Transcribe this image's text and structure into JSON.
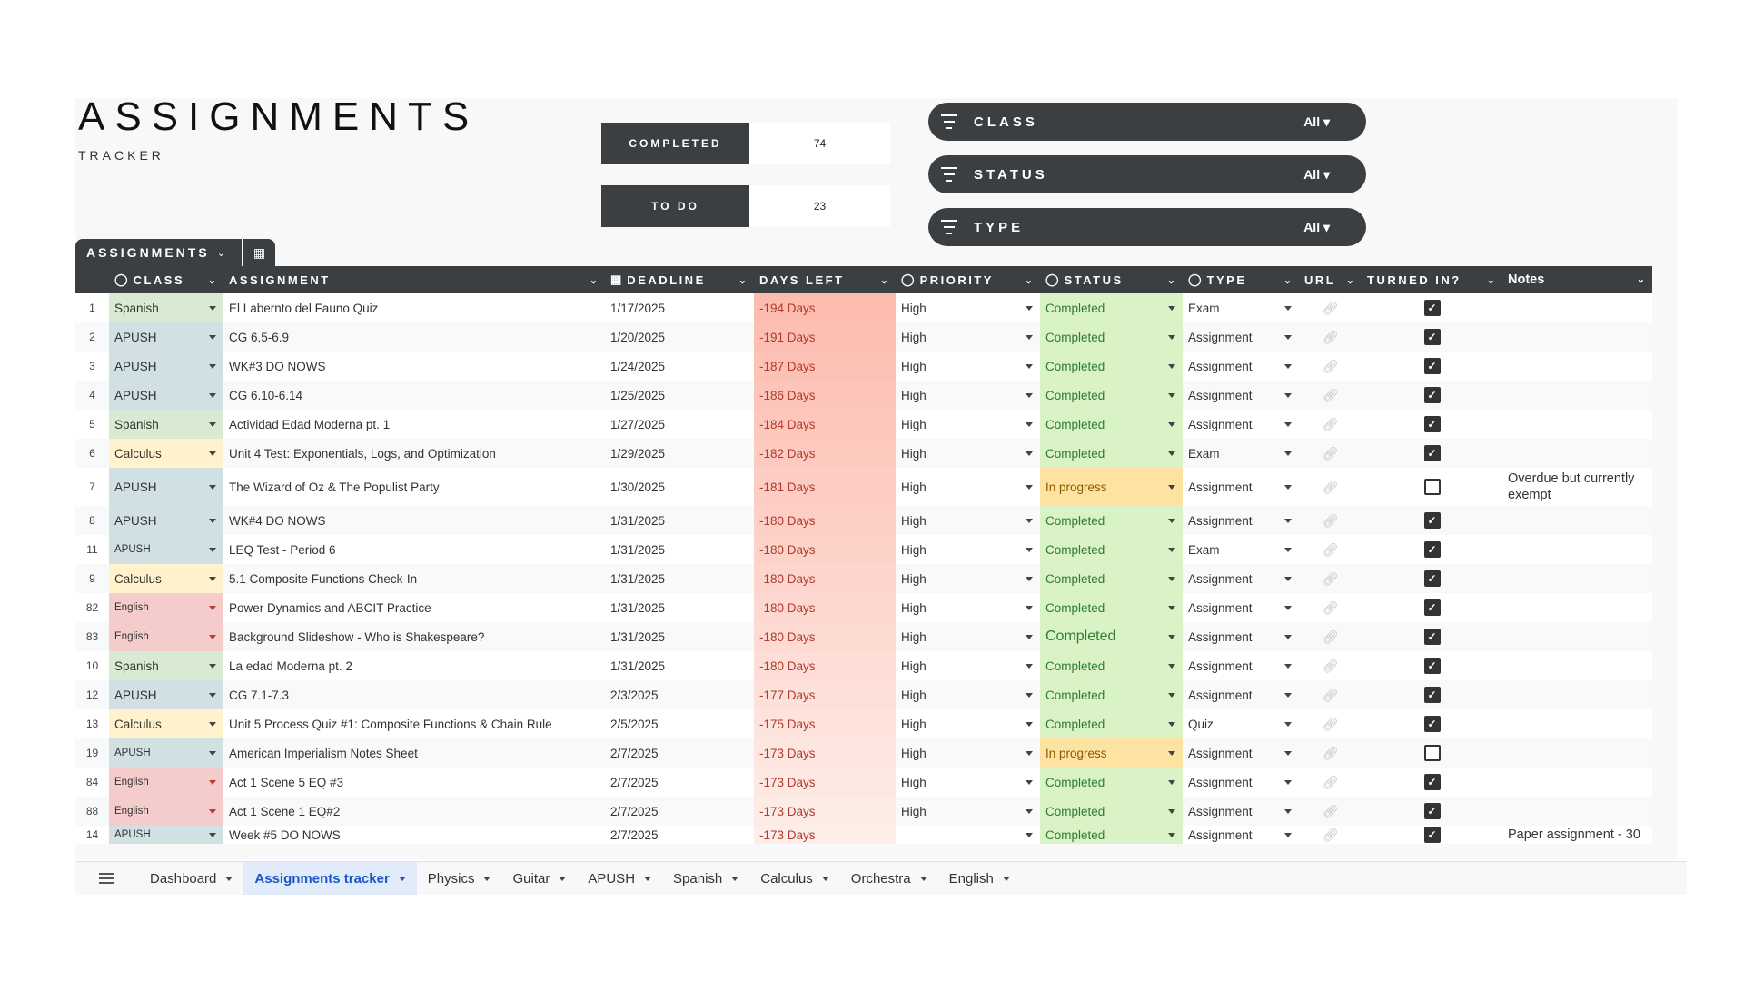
{
  "header": {
    "title": "ASSIGNMENTS",
    "subtitle": "TRACKER"
  },
  "stats": [
    {
      "label": "COMPLETED",
      "value": "74"
    },
    {
      "label": "TO DO",
      "value": "23"
    }
  ],
  "filters": [
    {
      "label": "CLASS",
      "value": "All"
    },
    {
      "label": "STATUS",
      "value": "All"
    },
    {
      "label": "TYPE",
      "value": "All"
    }
  ],
  "table_tab": {
    "label": "ASSIGNMENTS"
  },
  "columns": {
    "class": "CLASS",
    "assignment": "ASSIGNMENT",
    "deadline": "DEADLINE",
    "days_left": "DAYS LEFT",
    "priority": "PRIORITY",
    "status": "STATUS",
    "type": "TYPE",
    "url": "URL",
    "turned_in": "TURNED IN?",
    "notes": "Notes"
  },
  "rows": [
    {
      "n": "1",
      "class": "Spanish",
      "assignment": "El Labernto del Fauno Quiz",
      "deadline": "1/17/2025",
      "days": "-194 Days",
      "priority": "High",
      "status": "Completed",
      "type": "Exam",
      "turned": true,
      "notes": ""
    },
    {
      "n": "2",
      "class": "APUSH",
      "assignment": "CG 6.5-6.9",
      "deadline": "1/20/2025",
      "days": "-191 Days",
      "priority": "High",
      "status": "Completed",
      "type": "Assignment",
      "turned": true,
      "notes": ""
    },
    {
      "n": "3",
      "class": "APUSH",
      "assignment": "WK#3 DO NOWS",
      "deadline": "1/24/2025",
      "days": "-187 Days",
      "priority": "High",
      "status": "Completed",
      "type": "Assignment",
      "turned": true,
      "notes": ""
    },
    {
      "n": "4",
      "class": "APUSH",
      "assignment": "CG 6.10-6.14",
      "deadline": "1/25/2025",
      "days": "-186 Days",
      "priority": "High",
      "status": "Completed",
      "type": "Assignment",
      "turned": true,
      "notes": ""
    },
    {
      "n": "5",
      "class": "Spanish",
      "assignment": "Actividad Edad Moderna pt. 1",
      "deadline": "1/27/2025",
      "days": "-184 Days",
      "priority": "High",
      "status": "Completed",
      "type": "Assignment",
      "turned": true,
      "notes": ""
    },
    {
      "n": "6",
      "class": "Calculus",
      "assignment": "Unit 4 Test: Exponentials, Logs, and Optimization",
      "deadline": "1/29/2025",
      "days": "-182 Days",
      "priority": "High",
      "status": "Completed",
      "type": "Exam",
      "turned": true,
      "notes": ""
    },
    {
      "n": "7",
      "class": "APUSH",
      "assignment": "The Wizard of Oz & The Populist Party",
      "deadline": "1/30/2025",
      "days": "-181 Days",
      "priority": "High",
      "status": "In progress",
      "type": "Assignment",
      "turned": false,
      "notes": "Overdue but currently exempt"
    },
    {
      "n": "8",
      "class": "APUSH",
      "assignment": "WK#4 DO NOWS",
      "deadline": "1/31/2025",
      "days": "-180 Days",
      "priority": "High",
      "status": "Completed",
      "type": "Assignment",
      "turned": true,
      "notes": ""
    },
    {
      "n": "11",
      "class": "APUSH",
      "assignment": "LEQ Test - Period 6",
      "deadline": "1/31/2025",
      "days": "-180 Days",
      "priority": "High",
      "status": "Completed",
      "type": "Exam",
      "turned": true,
      "notes": ""
    },
    {
      "n": "9",
      "class": "Calculus",
      "assignment": "5.1 Composite Functions Check-In",
      "deadline": "1/31/2025",
      "days": "-180 Days",
      "priority": "High",
      "status": "Completed",
      "type": "Assignment",
      "turned": true,
      "notes": ""
    },
    {
      "n": "82",
      "class": "English",
      "assignment": "Power Dynamics and ABCIT Practice",
      "deadline": "1/31/2025",
      "days": "-180 Days",
      "priority": "High",
      "status": "Completed",
      "type": "Assignment",
      "turned": true,
      "notes": ""
    },
    {
      "n": "83",
      "class": "English",
      "assignment": "Background Slideshow - Who is Shakespeare?",
      "deadline": "1/31/2025",
      "days": "-180 Days",
      "priority": "High",
      "status": "Completed",
      "type": "Assignment",
      "turned": true,
      "notes": ""
    },
    {
      "n": "10",
      "class": "Spanish",
      "assignment": "La edad Moderna pt. 2",
      "deadline": "1/31/2025",
      "days": "-180 Days",
      "priority": "High",
      "status": "Completed",
      "type": "Assignment",
      "turned": true,
      "notes": ""
    },
    {
      "n": "12",
      "class": "APUSH",
      "assignment": "CG 7.1-7.3",
      "deadline": "2/3/2025",
      "days": "-177 Days",
      "priority": "High",
      "status": "Completed",
      "type": "Assignment",
      "turned": true,
      "notes": ""
    },
    {
      "n": "13",
      "class": "Calculus",
      "assignment": "Unit 5 Process Quiz #1: Composite Functions & Chain Rule",
      "deadline": "2/5/2025",
      "days": "-175 Days",
      "priority": "High",
      "status": "Completed",
      "type": "Quiz",
      "turned": true,
      "notes": ""
    },
    {
      "n": "19",
      "class": "APUSH",
      "assignment": "American Imperialism Notes Sheet",
      "deadline": "2/7/2025",
      "days": "-173 Days",
      "priority": "High",
      "status": "In progress",
      "type": "Assignment",
      "turned": false,
      "notes": ""
    },
    {
      "n": "84",
      "class": "English",
      "assignment": "Act 1 Scene 5 EQ #3",
      "deadline": "2/7/2025",
      "days": "-173 Days",
      "priority": "High",
      "status": "Completed",
      "type": "Assignment",
      "turned": true,
      "notes": ""
    },
    {
      "n": "88",
      "class": "English",
      "assignment": "Act 1 Scene 1 EQ#2",
      "deadline": "2/7/2025",
      "days": "-173 Days",
      "priority": "High",
      "status": "Completed",
      "type": "Assignment",
      "turned": true,
      "notes": ""
    },
    {
      "n": "14",
      "class": "APUSH",
      "assignment": "Week #5 DO NOWS",
      "deadline": "2/7/2025",
      "days": "-173 Days",
      "priority": "",
      "status": "Completed",
      "type": "Assignment",
      "turned": true,
      "notes": "Paper assignment - 30"
    }
  ],
  "sheet_tabs": [
    "Dashboard",
    "Assignments tracker",
    "Physics",
    "Guitar",
    "APUSH",
    "Spanish",
    "Calculus",
    "Orchestra",
    "English"
  ],
  "active_sheet": "Assignments tracker",
  "colors": {
    "dark": "#3c3f42",
    "class": {
      "Spanish": "#d9ead3",
      "APUSH": "#d0e0e3",
      "Calculus": "#fff2cc",
      "English": "#f4cccc"
    },
    "status": {
      "Completed": "#d9f2c6",
      "In progress": "#fde2a2"
    },
    "days_gradient": [
      "#fdbcb0",
      "#fdeee9"
    ]
  }
}
